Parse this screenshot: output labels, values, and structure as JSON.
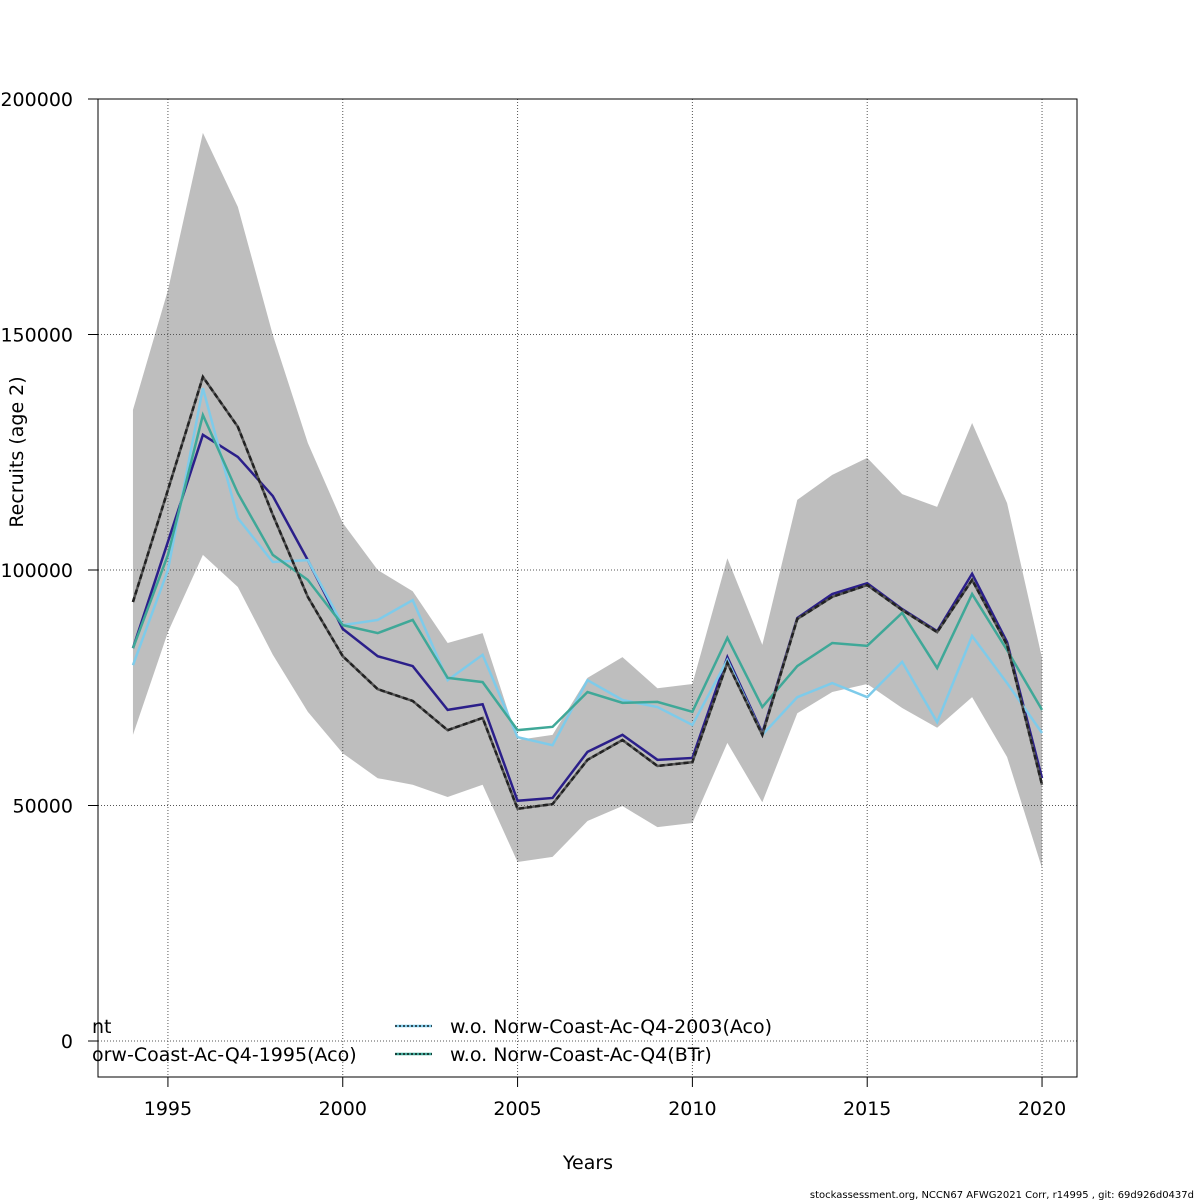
{
  "chart_data": {
    "type": "line",
    "xlabel": "Years",
    "ylabel": "Recruits (age 2)",
    "xlim": [
      1993,
      2021
    ],
    "ylim": [
      -7640,
      200000
    ],
    "xticks": [
      1995,
      2000,
      2005,
      2010,
      2015,
      2020
    ],
    "yticks": [
      0,
      50000,
      100000,
      150000,
      200000
    ],
    "ytick_labels": [
      "0",
      "50000",
      "100000",
      "150000",
      "200000"
    ],
    "grid": true,
    "legend_position": "bottom-left",
    "x": [
      1994,
      1995,
      1996,
      1997,
      1998,
      1999,
      2000,
      2001,
      2002,
      2003,
      2004,
      2005,
      2006,
      2007,
      2008,
      2009,
      2010,
      2011,
      2012,
      2013,
      2014,
      2015,
      2016,
      2017,
      2018,
      2019,
      2020
    ],
    "band": {
      "color": "#bebebe",
      "upper": [
        134000,
        159400,
        192800,
        177100,
        149900,
        127000,
        110000,
        100000,
        95500,
        84500,
        86600,
        63900,
        65000,
        77100,
        81500,
        74900,
        75800,
        102500,
        84100,
        114900,
        120200,
        123800,
        116100,
        113400,
        131200,
        114200,
        81300
      ],
      "lower": [
        65000,
        86800,
        103200,
        96400,
        82000,
        69900,
        61100,
        55800,
        54400,
        51800,
        54400,
        38000,
        39100,
        46700,
        49900,
        45400,
        46300,
        63300,
        50700,
        69600,
        74100,
        75800,
        70700,
        66500,
        73000,
        60300,
        36700
      ]
    },
    "series": [
      {
        "color": "#2b1f8a",
        "style": "solid",
        "values": [
          83400,
          106000,
          128700,
          124000,
          115700,
          102100,
          87500,
          81700,
          79600,
          70300,
          71500,
          51000,
          51600,
          61400,
          65000,
          59700,
          60100,
          81500,
          65400,
          89800,
          94900,
          97200,
          91700,
          87000,
          99200,
          84700,
          55800
        ]
      },
      {
        "name": "w.o. Norw-Coast-Ac-Q4-2003(Aco)",
        "color": "#7ecbea",
        "style": "solid",
        "values": [
          79800,
          100000,
          138600,
          111000,
          101700,
          102100,
          88300,
          89400,
          93600,
          76600,
          82000,
          64500,
          62800,
          76600,
          72400,
          70900,
          67100,
          80900,
          65000,
          73000,
          76000,
          73000,
          80500,
          67700,
          86000,
          76000,
          65400
        ]
      },
      {
        "name": "w.o. Norw-Coast-Ac-Q4(BTr)",
        "color": "#3fa898",
        "style": "solid",
        "values": [
          83400,
          103200,
          132900,
          116300,
          103200,
          97900,
          88300,
          86600,
          89400,
          77100,
          76200,
          66000,
          66700,
          74100,
          71800,
          72000,
          69900,
          85600,
          70900,
          79600,
          84500,
          83900,
          90900,
          79200,
          94900,
          83000,
          70300
        ]
      },
      {
        "color": "#222222",
        "style": "dashed",
        "values": [
          93200,
          117000,
          141000,
          130400,
          111700,
          94300,
          81700,
          74700,
          72200,
          66000,
          68600,
          49300,
          50300,
          59700,
          63900,
          58400,
          59200,
          80300,
          65000,
          89600,
          94300,
          96800,
          91500,
          86800,
          97900,
          84100,
          54400
        ]
      }
    ],
    "legend": [
      {
        "label": "nt",
        "color": "#222222"
      },
      {
        "label": "orw-Coast-Ac-Q4-1995(Aco)",
        "color": "#2b1f8a"
      },
      {
        "label": "w.o. Norw-Coast-Ac-Q4-2003(Aco)",
        "color": "#7ecbea"
      },
      {
        "label": "w.o. Norw-Coast-Ac-Q4(BTr)",
        "color": "#3fa898"
      }
    ]
  },
  "footer": "stockassessment.org, NCCN67  AFWG2021  Corr, r14995 , git: 69d926d0437d"
}
